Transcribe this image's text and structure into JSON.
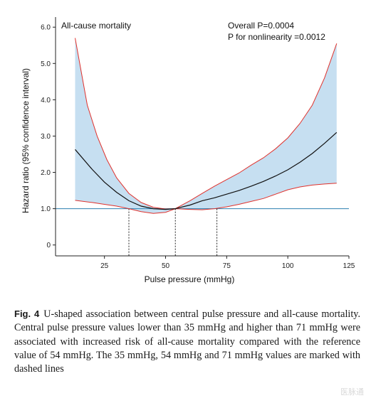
{
  "chart_data": {
    "type": "line",
    "title": "All-cause mortality",
    "annotations": [
      "Overall P=0.0004",
      "P for nonlinearity =0.0012"
    ],
    "xlabel": "Pulse pressure (mmHg)",
    "ylabel": "Hazard ratio (95% confidence interval)",
    "xlim": [
      5,
      125
    ],
    "ylim": [
      -0.3,
      6.2
    ],
    "x_ticks": [
      25,
      50,
      75,
      100,
      125
    ],
    "y_ticks": [
      0,
      1.0,
      2.0,
      3.0,
      4.0,
      5.0,
      6.0
    ],
    "x_tick_labels": [
      "25",
      "50",
      "75",
      "100",
      "125"
    ],
    "y_tick_labels": [
      "0",
      "1.0",
      "2.0",
      "3.0",
      "4.0",
      "5.0",
      "6.0"
    ],
    "reference_line_y": 1.0,
    "marked_x": [
      35,
      54,
      71
    ],
    "series": [
      {
        "role": "estimate",
        "x": [
          13,
          20,
          25,
          30,
          35,
          40,
          45,
          50,
          54,
          60,
          65,
          70,
          75,
          80,
          85,
          90,
          95,
          100,
          105,
          110,
          115,
          120
        ],
        "y": [
          2.63,
          2.08,
          1.73,
          1.45,
          1.22,
          1.07,
          1.0,
          0.98,
          1.0,
          1.1,
          1.22,
          1.3,
          1.4,
          1.5,
          1.62,
          1.75,
          1.9,
          2.07,
          2.28,
          2.52,
          2.8,
          3.1
        ]
      },
      {
        "role": "upper_ci",
        "x": [
          13,
          18,
          22,
          26,
          30,
          35,
          40,
          45,
          50,
          54,
          60,
          65,
          70,
          75,
          80,
          85,
          90,
          95,
          100,
          105,
          110,
          115,
          120
        ],
        "y": [
          5.7,
          3.85,
          3.0,
          2.35,
          1.85,
          1.42,
          1.17,
          1.04,
          0.99,
          1.0,
          1.22,
          1.42,
          1.62,
          1.8,
          1.98,
          2.2,
          2.4,
          2.65,
          2.95,
          3.35,
          3.85,
          4.6,
          5.55
        ]
      },
      {
        "role": "lower_ci",
        "x": [
          13,
          20,
          25,
          30,
          35,
          40,
          45,
          50,
          54,
          60,
          65,
          70,
          75,
          80,
          85,
          90,
          95,
          100,
          105,
          110,
          115,
          120
        ],
        "y": [
          1.23,
          1.17,
          1.12,
          1.07,
          1.0,
          0.92,
          0.87,
          0.9,
          1.0,
          0.98,
          0.97,
          1.0,
          1.05,
          1.12,
          1.2,
          1.28,
          1.4,
          1.52,
          1.6,
          1.65,
          1.68,
          1.7
        ]
      }
    ],
    "colors": {
      "band_fill": "#c6dff1",
      "ci_line": "#e0322d",
      "estimate_line": "#111111",
      "reference_line": "#2b7fb1",
      "axis": "#222222"
    }
  },
  "caption": {
    "label": "Fig. 4",
    "text": "U-shaped association between central pulse pressure and all-cause mortality. Central pulse pressure values lower than 35 mmHg and higher than 71 mmHg were associated with increased risk of all-cause mortality compared with the reference value of 54 mmHg. The 35 mmHg, 54 mmHg and 71 mmHg values are marked with dashed lines"
  },
  "watermark": "医脉通"
}
